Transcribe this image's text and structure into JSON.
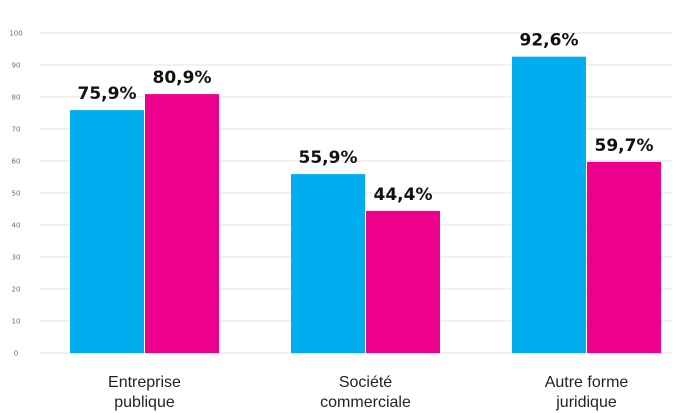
{
  "chart_data": {
    "type": "bar",
    "categories": [
      [
        "Entreprise",
        "publique"
      ],
      [
        "Société",
        "commerciale"
      ],
      [
        "Autre forme",
        "juridique"
      ]
    ],
    "series": [
      {
        "color": "#00adee",
        "values": [
          75.9,
          55.9,
          92.6
        ],
        "labels": [
          "75,9%",
          "55,9%",
          "92,6%"
        ]
      },
      {
        "color": "#ec008c",
        "values": [
          80.9,
          44.4,
          59.7
        ],
        "labels": [
          "80,9%",
          "44,4%",
          "59,7%"
        ]
      }
    ],
    "ylim": [
      0,
      100
    ],
    "yticks": [
      0,
      10,
      20,
      30,
      40,
      50,
      60,
      70,
      80,
      90,
      100
    ],
    "grid": true,
    "legend": "none"
  }
}
